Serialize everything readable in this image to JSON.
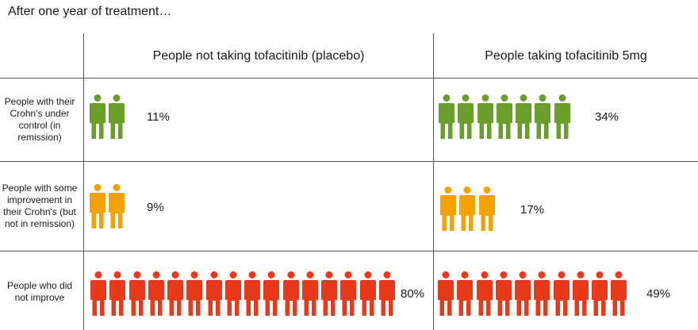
{
  "title": "After one year of treatment…",
  "columns": {
    "placebo": "People not taking tofacitinib (placebo)",
    "tofacitinib": "People taking tofacitinib 5mg"
  },
  "colors": {
    "remission": "#6a9e2a",
    "improvement": "#f3a200",
    "no_improvement": "#e8391b"
  },
  "icon": "person-icon",
  "rows": [
    {
      "key": "remission",
      "label": "People with their Crohn's under control (in remission)",
      "placebo": {
        "count": 2,
        "percent": "11%"
      },
      "tofacitinib": {
        "count": 7,
        "percent": "34%"
      }
    },
    {
      "key": "improvement",
      "label": "People with some improvement in their Crohn's (but not in remission)",
      "placebo": {
        "count": 2,
        "percent": "9%"
      },
      "tofacitinib": {
        "count": 3,
        "percent": "17%"
      }
    },
    {
      "key": "no_improvement",
      "label": "People who did not improve",
      "placebo": {
        "count": 16,
        "percent": "80%"
      },
      "tofacitinib": {
        "count": 10,
        "percent": "49%"
      }
    }
  ]
}
